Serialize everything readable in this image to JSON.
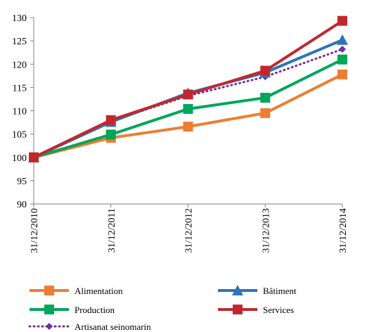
{
  "chart_data": {
    "type": "line",
    "x": [
      "31/12/2010",
      "31/12/2011",
      "31/12/2012",
      "31/12/2013",
      "31/12/2014"
    ],
    "ylim": [
      90,
      130
    ],
    "yticks": [
      90,
      95,
      100,
      105,
      110,
      115,
      120,
      125,
      130
    ],
    "grid": false,
    "legend_position": "bottom",
    "series": [
      {
        "name": "Alimentation",
        "values": [
          100,
          104.2,
          106.6,
          109.5,
          117.8
        ],
        "color": "#ED7D31",
        "marker": "square",
        "dash": "solid"
      },
      {
        "name": "Bâtiment",
        "values": [
          100,
          107.6,
          113.8,
          118.2,
          125.2
        ],
        "color": "#2E75B6",
        "marker": "triangle",
        "dash": "solid"
      },
      {
        "name": "Production",
        "values": [
          100,
          104.9,
          110.4,
          112.8,
          121
        ],
        "color": "#00A65A",
        "marker": "square",
        "dash": "solid"
      },
      {
        "name": "Services",
        "values": [
          100,
          108,
          113.5,
          118.6,
          129.3
        ],
        "color": "#C0282D",
        "marker": "square",
        "dash": "solid"
      },
      {
        "name": "Artisanat seinomarin",
        "values": [
          100,
          107.8,
          113.2,
          117.3,
          123.2
        ],
        "color": "#7030A0",
        "marker": "diamond",
        "dash": "dotted"
      }
    ]
  }
}
